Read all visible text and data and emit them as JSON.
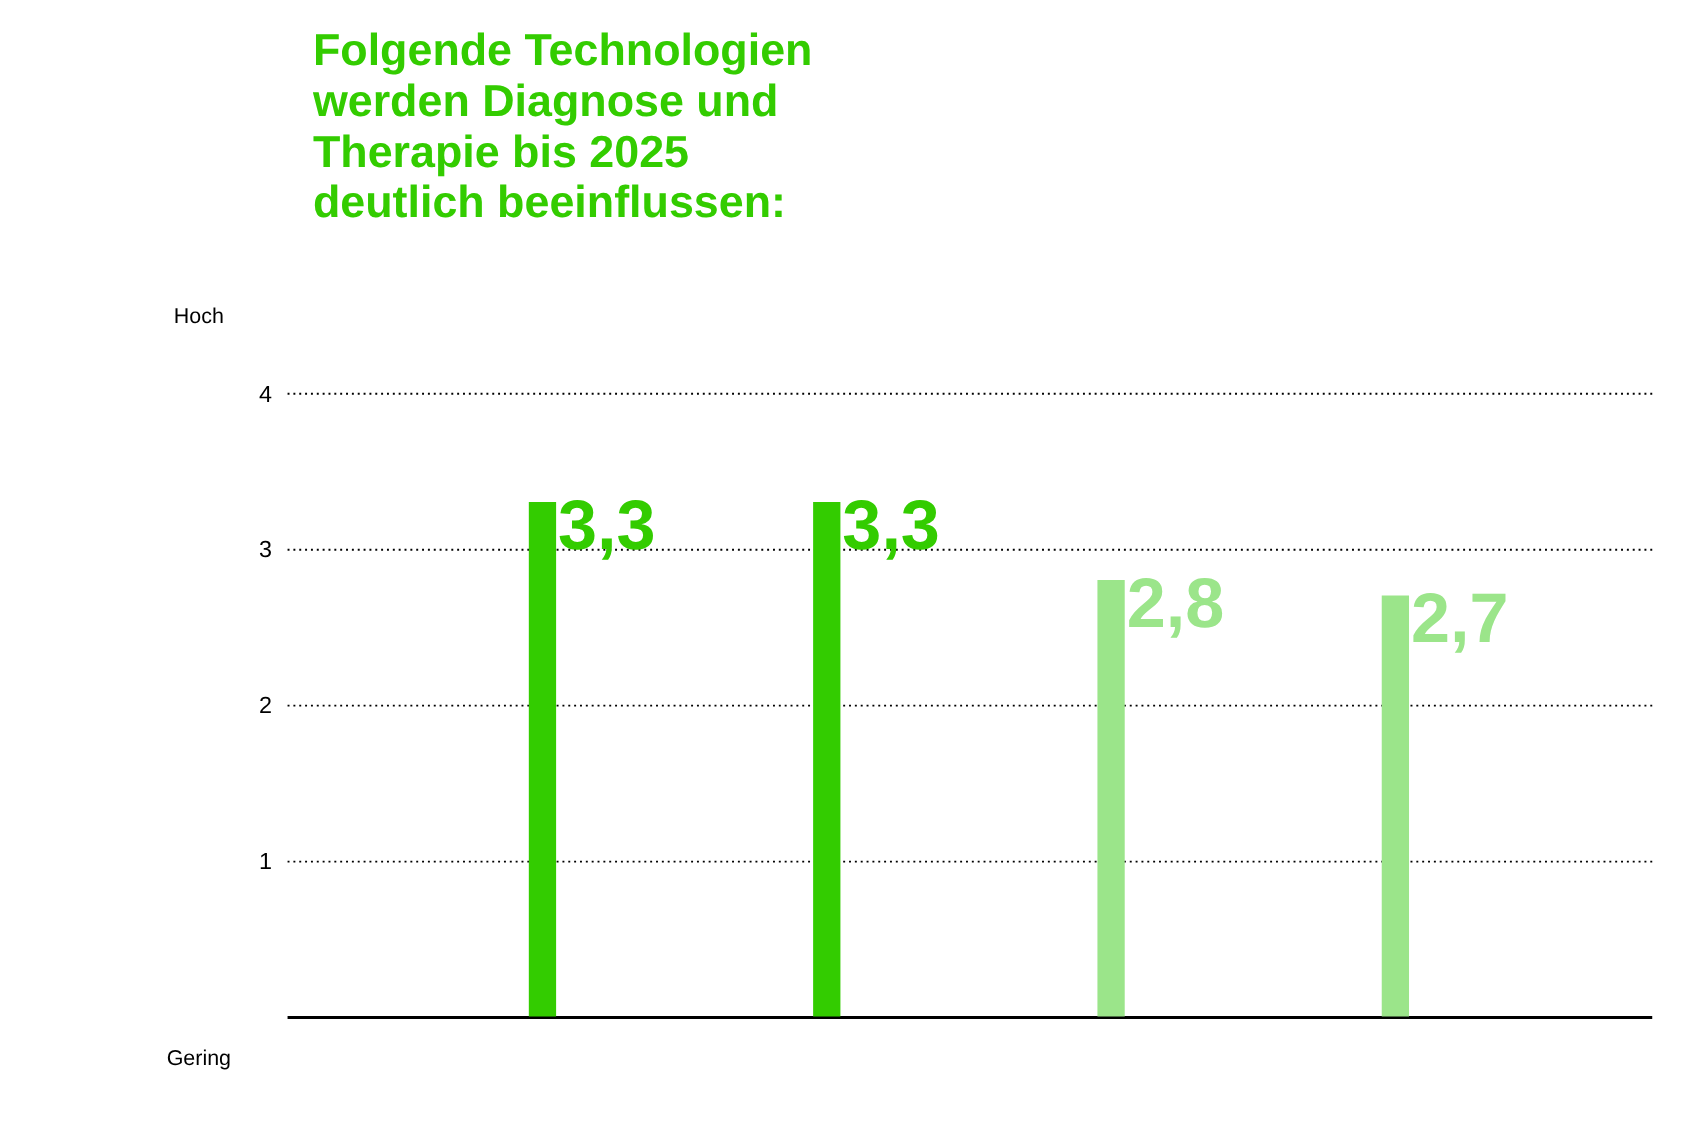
{
  "chart_data": {
    "type": "bar",
    "title": "Folgende Technologien\nwerden Diagnose und\nTherapie bis 2025\ndeutlich beeinflussen:",
    "categories": [
      null,
      null,
      null,
      null
    ],
    "values": [
      3.3,
      3.3,
      2.8,
      2.7
    ],
    "colors": [
      "#33cc00",
      "#33cc00",
      "#9be58a",
      "#9be58a"
    ],
    "value_labels": [
      "3,3",
      "3,3",
      "2,8",
      "2,7"
    ],
    "ylim": [
      0,
      4
    ],
    "yticks": [
      1,
      2,
      3,
      4
    ],
    "grid": "y",
    "tick_labels": "y",
    "annotations": [
      "Hoch",
      "Gering"
    ]
  }
}
